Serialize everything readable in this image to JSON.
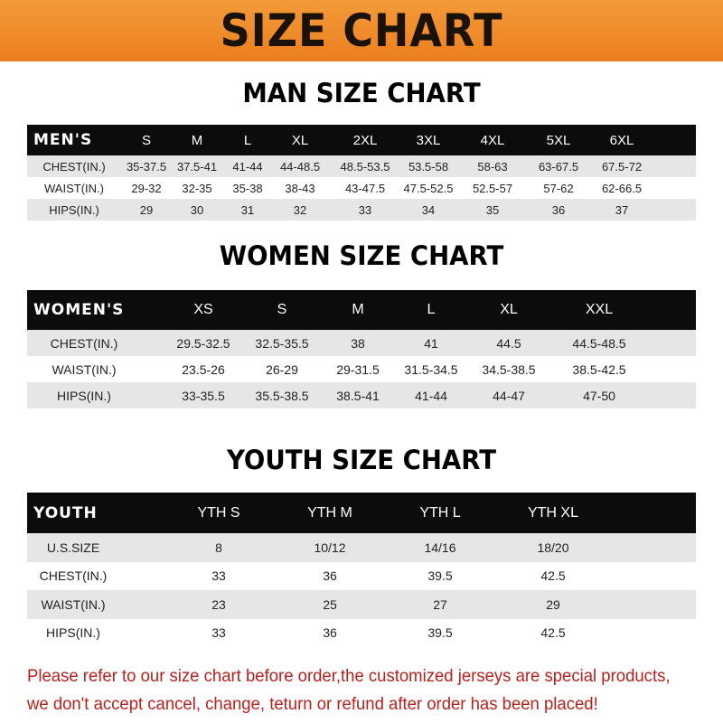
{
  "banner": {
    "title": "SIZE CHART",
    "color": "#ee8a28"
  },
  "men": {
    "title": "MAN SIZE CHART",
    "header": [
      "MEN'S",
      "S",
      "M",
      "L",
      "XL",
      "2XL",
      "3XL",
      "4XL",
      "5XL",
      "6XL"
    ],
    "rows": [
      [
        "CHEST(IN.)",
        "35-37.5",
        "37.5-41",
        "41-44",
        "44-48.5",
        "48.5-53.5",
        "53.5-58",
        "58-63",
        "63-67.5",
        "67.5-72"
      ],
      [
        "WAIST(IN.)",
        "29-32",
        "32-35",
        "35-38",
        "38-43",
        "43-47.5",
        "47.5-52.5",
        "52.5-57",
        "57-62",
        "62-66.5"
      ],
      [
        "HIPS(IN.)",
        "29",
        "30",
        "31",
        "32",
        "33",
        "34",
        "35",
        "36",
        "37"
      ]
    ]
  },
  "women": {
    "title": "WOMEN SIZE CHART",
    "header": [
      "WOMEN'S",
      "",
      "XS",
      "S",
      "M",
      "L",
      "XL",
      "XXL"
    ],
    "rows": [
      [
        "CHEST(IN.)",
        "",
        "29.5-32.5",
        "32.5-35.5",
        "38",
        "41",
        "44.5",
        "44.5-48.5"
      ],
      [
        "WAIST(IN.)",
        "",
        "23.5-26",
        "26-29",
        "29-31.5",
        "31.5-34.5",
        "34.5-38.5",
        "38.5-42.5"
      ],
      [
        "HIPS(IN.)",
        "",
        "33-35.5",
        "35.5-38.5",
        "38.5-41",
        "41-44",
        "44-47",
        "47-50"
      ]
    ]
  },
  "youth": {
    "title": "YOUTH SIZE CHART",
    "header": [
      "YOUTH",
      "",
      "YTH S",
      "YTH M",
      "YTH L",
      "YTH XL"
    ],
    "rows": [
      [
        "U.S.SIZE",
        "",
        "8",
        "10/12",
        "14/16",
        "18/20"
      ],
      [
        "CHEST(IN.)",
        "",
        "33",
        "36",
        "39.5",
        "42.5"
      ],
      [
        "WAIST(IN.)",
        "",
        "23",
        "25",
        "27",
        "29"
      ],
      [
        "HIPS(IN.)",
        "",
        "33",
        "36",
        "39.5",
        "42.5"
      ]
    ]
  },
  "notice": {
    "line1": "Please refer to our size chart before order,the customized jerseys are special products,",
    "line2": "we don't accept cancel, change, teturn or refund after order has been placed!",
    "color": "#b8201c"
  }
}
